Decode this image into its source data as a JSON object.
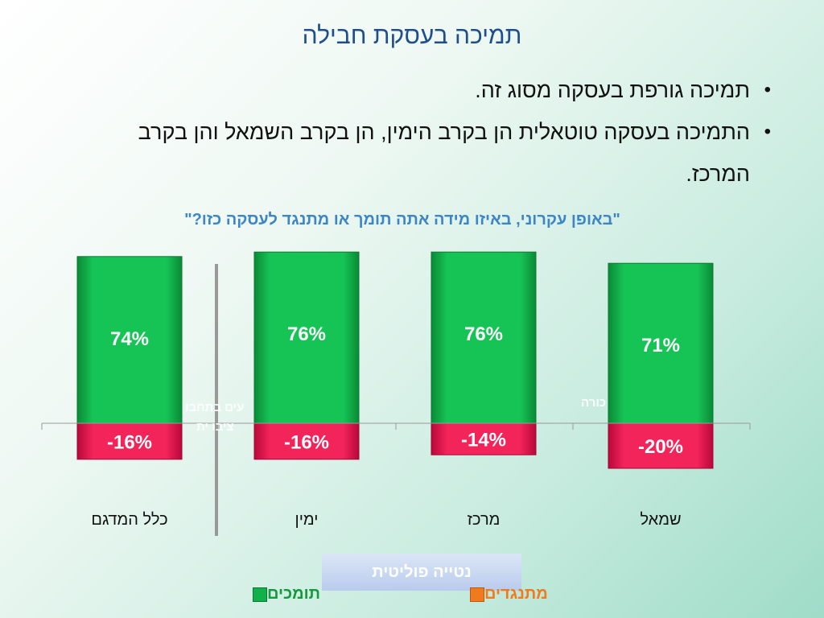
{
  "slide": {
    "title": "תמיכה בעסקת חבילה",
    "bullets": [
      "תמיכה גורפת בעסקה מסוג זה.",
      "התמיכה בעסקה טוטאלית הן בקרב הימין, הן בקרב השמאל והן בקרב המרכז."
    ],
    "bullet_symbol": "•"
  },
  "chart_data": {
    "type": "bar",
    "title": "\"באופן עקרוני, באיזו מידה אתה תומך או מתנגד לעסקה כזו?\"",
    "xlabel": "נטייה פוליטית",
    "categories": [
      "כלל המדגם",
      "ימין",
      "מרכז",
      "שמאל"
    ],
    "series": [
      {
        "name": "תומכים",
        "values": [
          74,
          76,
          76,
          71
        ],
        "labels": [
          "74%",
          "76%",
          "76%",
          "71%"
        ],
        "color": "#10b14a"
      },
      {
        "name": "מתנגדים",
        "values": [
          -16,
          -16,
          -14,
          -20
        ],
        "labels": [
          "-16%",
          "-16%",
          "-14%",
          "-20%"
        ],
        "color": "#e8144c"
      }
    ],
    "legend": {
      "placement": "bottom",
      "support_color": "#149a3c",
      "oppose_color": "#f07a1e"
    },
    "overlaid_text": [
      "עים בתחבו",
      "ציבו ית",
      "כורה"
    ]
  }
}
